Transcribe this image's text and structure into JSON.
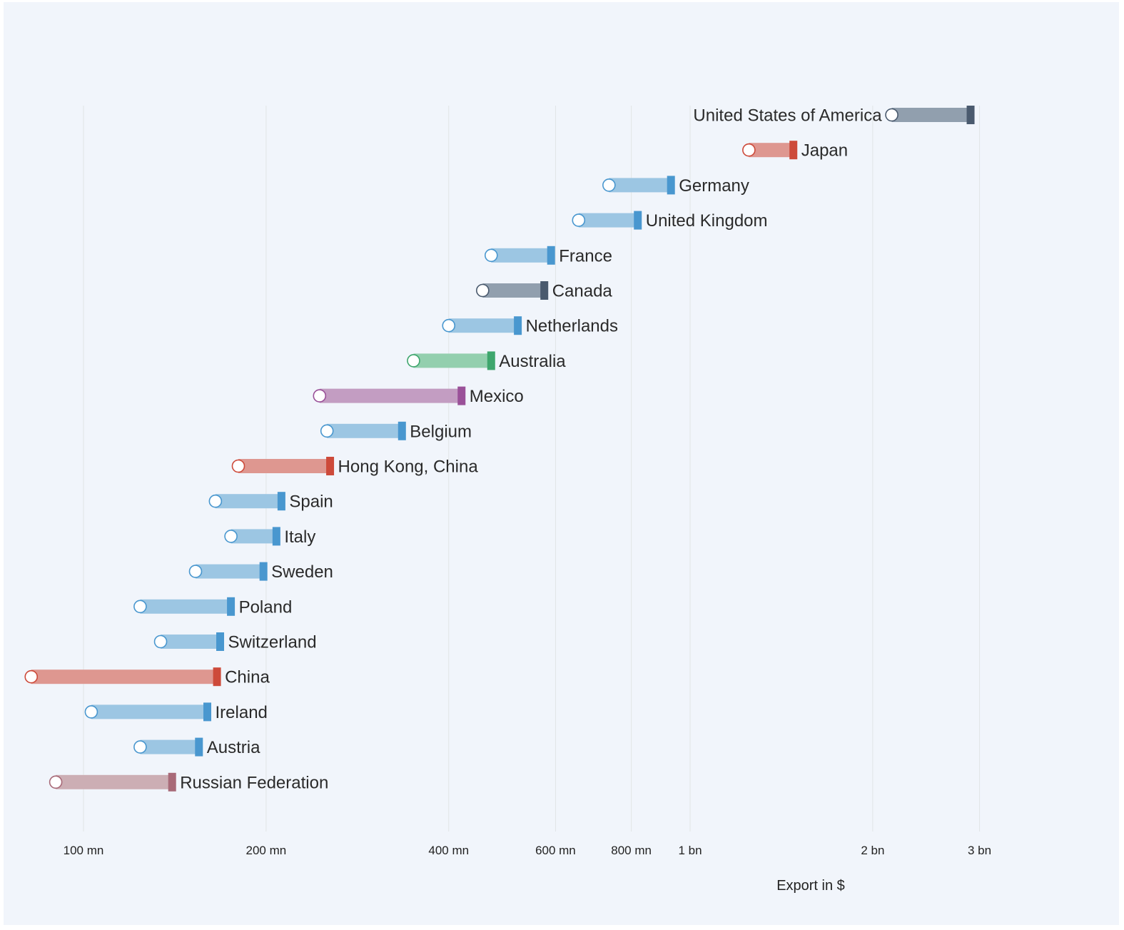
{
  "chart_data": {
    "type": "bar",
    "subtype": "range-bar",
    "title": "",
    "xlabel": "Export in $",
    "ylabel": "",
    "x_scale": "log",
    "xlim": [
      80000000,
      4000000000
    ],
    "grid": true,
    "legend": "none",
    "x_ticks": [
      {
        "value": 100000000,
        "label": "100 mn"
      },
      {
        "value": 200000000,
        "label": "200 mn"
      },
      {
        "value": 400000000,
        "label": "400 mn"
      },
      {
        "value": 600000000,
        "label": "600 mn"
      },
      {
        "value": 800000000,
        "label": "800 mn"
      },
      {
        "value": 1000000000,
        "label": "1 bn"
      },
      {
        "value": 2000000000,
        "label": "2 bn"
      },
      {
        "value": 3000000000,
        "label": "3 bn"
      }
    ],
    "label_position": {
      "United States of America": "left"
    },
    "series": [
      {
        "name": "United States of America",
        "start": 2150000000,
        "end": 2900000000,
        "color": "#4a5a6e",
        "light_color": "#919fae"
      },
      {
        "name": "Japan",
        "start": 1250000000,
        "end": 1480000000,
        "color": "#cd4a3a",
        "light_color": "#de9790"
      },
      {
        "name": "Germany",
        "start": 735000000,
        "end": 930000000,
        "color": "#4997cf",
        "light_color": "#9cc6e3"
      },
      {
        "name": "United Kingdom",
        "start": 655000000,
        "end": 820000000,
        "color": "#4997cf",
        "light_color": "#9cc6e3"
      },
      {
        "name": "France",
        "start": 470000000,
        "end": 590000000,
        "color": "#4997cf",
        "light_color": "#9cc6e3"
      },
      {
        "name": "Canada",
        "start": 455000000,
        "end": 575000000,
        "color": "#4a5a6e",
        "light_color": "#919fae"
      },
      {
        "name": "Netherlands",
        "start": 400000000,
        "end": 520000000,
        "color": "#4997cf",
        "light_color": "#9cc6e3"
      },
      {
        "name": "Australia",
        "start": 350000000,
        "end": 470000000,
        "color": "#3ea66d",
        "light_color": "#93cfae"
      },
      {
        "name": "Mexico",
        "start": 245000000,
        "end": 420000000,
        "color": "#9a5199",
        "light_color": "#c39dc2"
      },
      {
        "name": "Belgium",
        "start": 252000000,
        "end": 335000000,
        "color": "#4997cf",
        "light_color": "#9cc6e3"
      },
      {
        "name": "Hong Kong, China",
        "start": 180000000,
        "end": 255000000,
        "color": "#cd4a3a",
        "light_color": "#de9790"
      },
      {
        "name": "Spain",
        "start": 165000000,
        "end": 212000000,
        "color": "#4997cf",
        "light_color": "#9cc6e3"
      },
      {
        "name": "Italy",
        "start": 175000000,
        "end": 208000000,
        "color": "#4997cf",
        "light_color": "#9cc6e3"
      },
      {
        "name": "Sweden",
        "start": 153000000,
        "end": 198000000,
        "color": "#4997cf",
        "light_color": "#9cc6e3"
      },
      {
        "name": "Poland",
        "start": 124000000,
        "end": 175000000,
        "color": "#4997cf",
        "light_color": "#9cc6e3"
      },
      {
        "name": "Switzerland",
        "start": 134000000,
        "end": 168000000,
        "color": "#4997cf",
        "light_color": "#9cc6e3"
      },
      {
        "name": "China",
        "start": 82000000,
        "end": 166000000,
        "color": "#cd4a3a",
        "light_color": "#de9790"
      },
      {
        "name": "Ireland",
        "start": 103000000,
        "end": 160000000,
        "color": "#4997cf",
        "light_color": "#9cc6e3"
      },
      {
        "name": "Austria",
        "start": 124000000,
        "end": 155000000,
        "color": "#4997cf",
        "light_color": "#9cc6e3"
      },
      {
        "name": "Russian Federation",
        "start": 90000000,
        "end": 140000000,
        "color": "#a86a78",
        "light_color": "#ccaeb4"
      }
    ]
  }
}
